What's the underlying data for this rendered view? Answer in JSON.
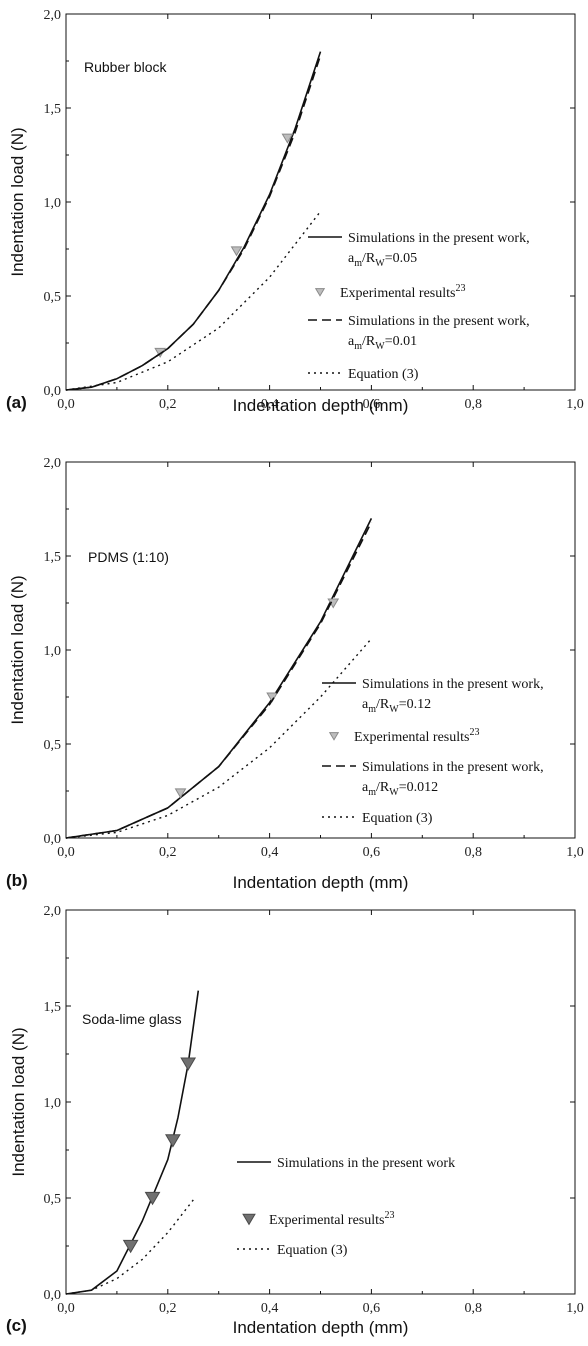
{
  "chart_data": [
    {
      "type": "line",
      "panel": "(a)",
      "sample": "Rubber block",
      "xlabel": "Indentation depth (mm)",
      "ylabel": "Indentation load (N)",
      "xlim": [
        0,
        1
      ],
      "ylim": [
        0,
        2
      ],
      "xticks": [
        "0,0",
        "0,2",
        "0,4",
        "0,6",
        "0,8",
        "1,0"
      ],
      "yticks": [
        "0,0",
        "0,5",
        "1,0",
        "1,5",
        "2,0"
      ],
      "legend_position": "right",
      "series": [
        {
          "style": "solid",
          "legend": [
            "Simulations in the present work,",
            "a",
            "m",
            "/R",
            "W",
            "=0.05"
          ],
          "x": [
            0,
            0.05,
            0.1,
            0.15,
            0.2,
            0.25,
            0.3,
            0.35,
            0.4,
            0.45,
            0.5
          ],
          "y": [
            0,
            0.015,
            0.06,
            0.13,
            0.22,
            0.35,
            0.53,
            0.76,
            1.04,
            1.39,
            1.8
          ]
        },
        {
          "style": "markers",
          "legend": [
            "Experimental results",
            "23"
          ],
          "x": [
            0.185,
            0.335,
            0.435
          ],
          "y": [
            0.2,
            0.74,
            1.34
          ]
        },
        {
          "style": "dashed",
          "legend": [
            "Simulations in the present work,",
            "a",
            "m",
            "/R",
            "W",
            "=0.01"
          ],
          "x": [
            0,
            0.05,
            0.1,
            0.15,
            0.2,
            0.25,
            0.3,
            0.35,
            0.4,
            0.45,
            0.5
          ],
          "y": [
            0,
            0.015,
            0.06,
            0.13,
            0.22,
            0.35,
            0.53,
            0.75,
            1.03,
            1.37,
            1.78
          ]
        },
        {
          "style": "dotted",
          "legend": [
            "Equation (3)"
          ],
          "x": [
            0,
            0.1,
            0.2,
            0.3,
            0.4,
            0.5
          ],
          "y": [
            0,
            0.04,
            0.15,
            0.33,
            0.6,
            0.95
          ]
        }
      ]
    },
    {
      "type": "line",
      "panel": "(b)",
      "sample": "PDMS (1:10)",
      "xlabel": "Indentation depth (mm)",
      "ylabel": "Indentation load (N)",
      "xlim": [
        0,
        1
      ],
      "ylim": [
        0,
        2
      ],
      "xticks": [
        "0,0",
        "0,2",
        "0,4",
        "0,6",
        "0,8",
        "1,0"
      ],
      "yticks": [
        "0,0",
        "0,5",
        "1,0",
        "1,5",
        "2,0"
      ],
      "legend_position": "right",
      "series": [
        {
          "style": "solid",
          "legend": [
            "Simulations in the present work,",
            "a",
            "m",
            "/R",
            "W",
            "=0.12"
          ],
          "x": [
            0,
            0.1,
            0.2,
            0.3,
            0.4,
            0.5,
            0.6
          ],
          "y": [
            0,
            0.04,
            0.16,
            0.38,
            0.72,
            1.15,
            1.7
          ]
        },
        {
          "style": "markers",
          "legend": [
            "Experimental results",
            "23"
          ],
          "x": [
            0.225,
            0.405,
            0.525
          ],
          "y": [
            0.24,
            0.75,
            1.25
          ]
        },
        {
          "style": "dashed",
          "legend": [
            "Simulations in the present work,",
            "a",
            "m",
            "/R",
            "W",
            "=0.012"
          ],
          "x": [
            0,
            0.1,
            0.2,
            0.3,
            0.4,
            0.5,
            0.6
          ],
          "y": [
            0,
            0.04,
            0.16,
            0.38,
            0.71,
            1.14,
            1.68
          ]
        },
        {
          "style": "dotted",
          "legend": [
            "Equation (3)"
          ],
          "x": [
            0,
            0.1,
            0.2,
            0.3,
            0.4,
            0.5,
            0.6
          ],
          "y": [
            0,
            0.03,
            0.12,
            0.27,
            0.48,
            0.75,
            1.06
          ]
        }
      ]
    },
    {
      "type": "line",
      "panel": "(c)",
      "sample": "Soda-lime glass",
      "xlabel": "Indentation depth (mm)",
      "ylabel": "Indentation load (N)",
      "xlim": [
        0,
        1
      ],
      "ylim": [
        0,
        2
      ],
      "xticks": [
        "0,0",
        "0,2",
        "0,4",
        "0,6",
        "0,8",
        "1,0"
      ],
      "yticks": [
        "0,0",
        "0,5",
        "1,0",
        "1,5",
        "2,0"
      ],
      "legend_position": "right",
      "series": [
        {
          "style": "solid",
          "legend": [
            "Simulations in the present work"
          ],
          "x": [
            0,
            0.05,
            0.1,
            0.15,
            0.2,
            0.22,
            0.24,
            0.26
          ],
          "y": [
            0,
            0.02,
            0.12,
            0.38,
            0.7,
            0.92,
            1.2,
            1.58
          ]
        },
        {
          "style": "markers",
          "legend": [
            "Experimental results",
            "23"
          ],
          "x": [
            0.127,
            0.17,
            0.21,
            0.24
          ],
          "y": [
            0.25,
            0.5,
            0.8,
            1.2
          ]
        },
        {
          "style": "dotted",
          "legend": [
            "Equation (3)"
          ],
          "x": [
            0,
            0.05,
            0.1,
            0.15,
            0.2,
            0.25
          ],
          "y": [
            0,
            0.02,
            0.08,
            0.18,
            0.32,
            0.49
          ]
        }
      ]
    }
  ]
}
